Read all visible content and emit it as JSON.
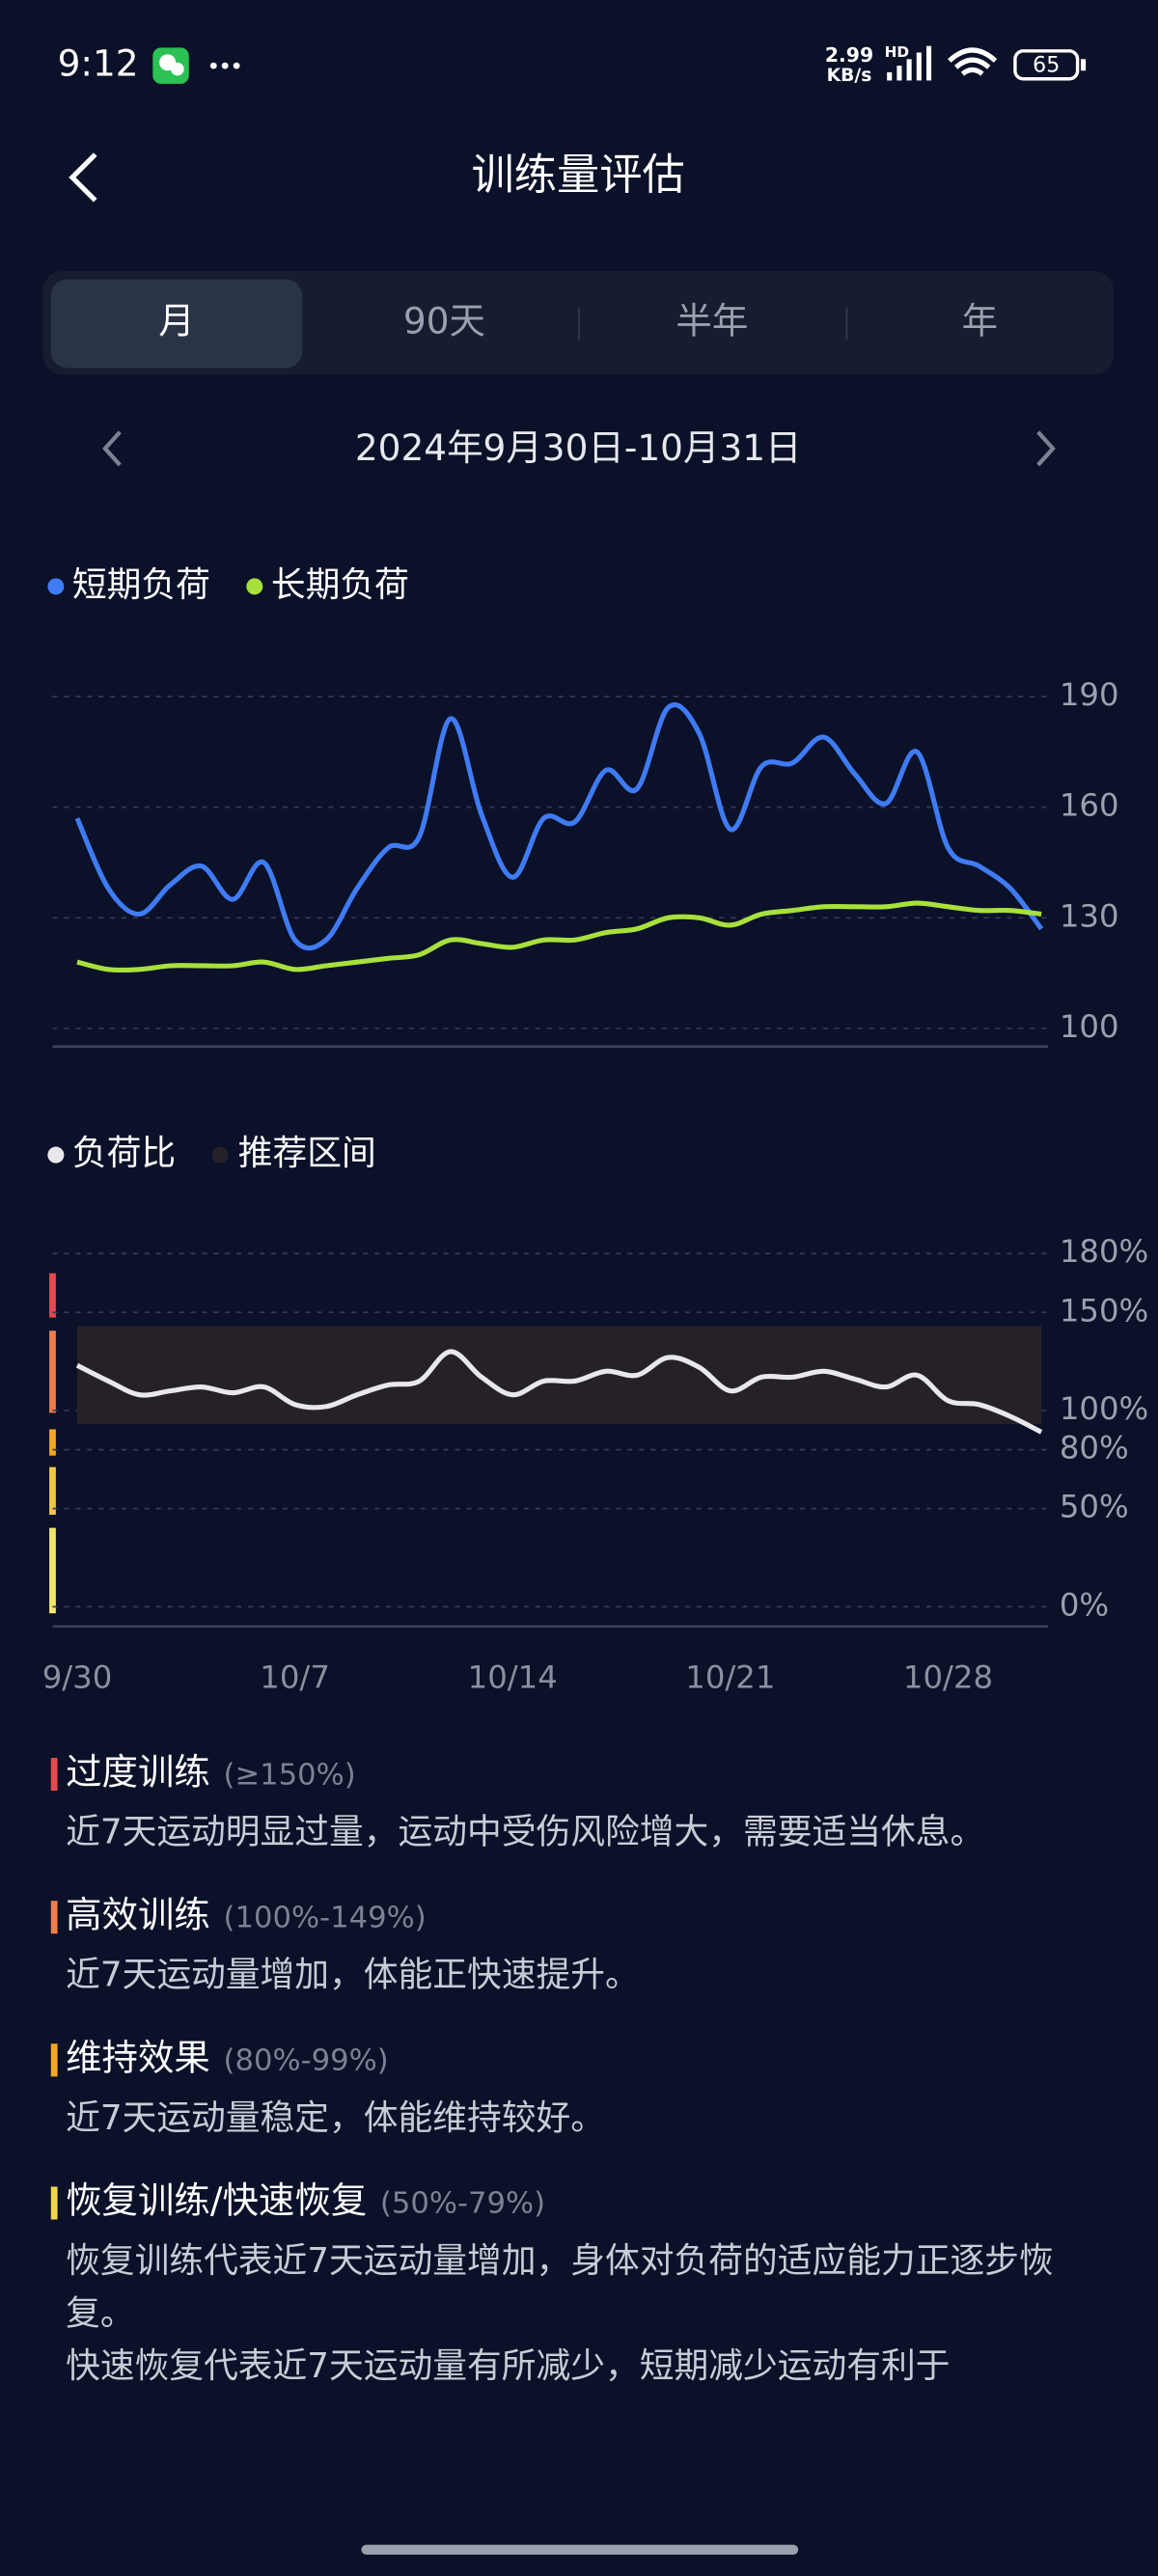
{
  "status_bar": {
    "time": "9:12",
    "network_speed": "2.99",
    "network_unit": "KB/s",
    "network_type": "HD",
    "battery": "65"
  },
  "header": {
    "title": "训练量评估"
  },
  "tabs": {
    "items": [
      "月",
      "90天",
      "半年",
      "年"
    ],
    "selected": 0
  },
  "date_range": "2024年9月30日-10月31日",
  "chart_data": [
    {
      "type": "line",
      "ylim": [
        100,
        190
      ],
      "yticks": [
        100,
        130,
        160,
        190
      ],
      "grid": true,
      "series": [
        {
          "name": "短期负荷",
          "color": "#3f7bf5",
          "values": [
            157,
            138,
            131,
            139,
            144,
            135,
            145,
            124,
            124,
            138,
            149,
            152,
            184,
            158,
            141,
            157,
            156,
            170,
            165,
            187,
            180,
            154,
            171,
            172,
            179,
            169,
            161,
            175,
            149,
            144,
            138,
            127
          ]
        },
        {
          "name": "长期负荷",
          "color": "#a8e03c",
          "values": [
            118,
            116,
            116,
            117,
            117,
            117,
            118,
            116,
            117,
            118,
            119,
            120,
            124,
            123,
            122,
            124,
            124,
            126,
            127,
            130,
            130,
            128,
            131,
            132,
            133,
            133,
            133,
            134,
            133,
            132,
            132,
            131
          ]
        }
      ]
    },
    {
      "type": "line",
      "ylim": [
        0,
        180
      ],
      "yticks": [
        {
          "value": 0,
          "label": "0%"
        },
        {
          "value": 50,
          "label": "50%"
        },
        {
          "value": 80,
          "label": "80%"
        },
        {
          "value": 100,
          "label": "100%"
        },
        {
          "value": 150,
          "label": "150%"
        },
        {
          "value": 180,
          "label": "180%"
        }
      ],
      "grid": true,
      "categories": [
        "9/30",
        null,
        null,
        null,
        null,
        null,
        null,
        "10/7",
        null,
        null,
        null,
        null,
        null,
        null,
        "10/14",
        null,
        null,
        null,
        null,
        null,
        null,
        "10/21",
        null,
        null,
        null,
        null,
        null,
        null,
        "10/28",
        null,
        null,
        null
      ],
      "series": [
        {
          "name": "负荷比",
          "color": "#e8e8ec",
          "values": [
            123,
            115,
            108,
            110,
            112,
            109,
            112,
            103,
            102,
            108,
            113,
            115,
            130,
            117,
            108,
            115,
            115,
            120,
            118,
            127,
            122,
            110,
            117,
            117,
            120,
            116,
            112,
            118,
            105,
            103,
            97,
            89
          ]
        }
      ],
      "band": {
        "name": "推荐区间",
        "color": "#262129",
        "range": [
          93,
          143
        ]
      }
    }
  ],
  "descriptions": [
    {
      "color": "#e5484d",
      "title": "过度训练",
      "range": "(≥150%)",
      "paragraphs": [
        "近7天运动明显过量，运动中受伤风险增大，需要适当休息。"
      ]
    },
    {
      "color": "#f07c4c",
      "title": "高效训练",
      "range": "(100%-149%)",
      "paragraphs": [
        "近7天运动量增加，体能正快速提升。"
      ]
    },
    {
      "color": "#f5a623",
      "title": "维持效果",
      "range": "(80%-99%)",
      "paragraphs": [
        "近7天运动量稳定，体能维持较好。"
      ]
    },
    {
      "color": "#f2d54a",
      "title": "恢复训练/快速恢复",
      "range": "(50%-79%)",
      "paragraphs": [
        "恢复训练代表近7天运动量增加，身体对负荷的适应能力正逐步恢复。",
        "快速恢复代表近7天运动量有所减少，短期减少运动有利于"
      ]
    }
  ]
}
